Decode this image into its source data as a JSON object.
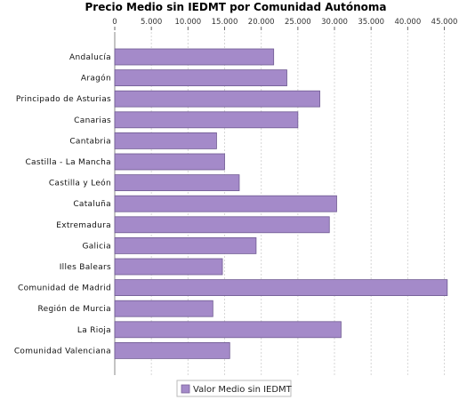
{
  "chart_data": {
    "type": "bar",
    "orientation": "horizontal",
    "title": "Precio Medio sin IEDMT por Comunidad Autónoma",
    "xlabel": "",
    "ylabel": "",
    "xlim": [
      0,
      47000
    ],
    "ticks": [
      0,
      5000,
      10000,
      15000,
      20000,
      25000,
      30000,
      35000,
      40000,
      45000
    ],
    "tick_labels": [
      "0",
      "5.000",
      "10.000",
      "15.000",
      "20.000",
      "25.000",
      "30.000",
      "35.000",
      "40.000",
      "45.000"
    ],
    "axis_position": "top",
    "grid": true,
    "categories": [
      "Andalucía",
      "Aragón",
      "Principado de Asturias",
      "Canarias",
      "Cantabria",
      "Castilla - La Mancha",
      "Castilla y León",
      "Cataluña",
      "Extremadura",
      "Galicia",
      "Illes Balears",
      "Comunidad de Madrid",
      "Región de Murcia",
      "La Rioja",
      "Comunidad Valenciana"
    ],
    "series": [
      {
        "name": "Valor Medio sin IEDMT",
        "color": "#a48ac9",
        "values": [
          21700,
          23500,
          28000,
          25000,
          13900,
          15000,
          17000,
          30300,
          29300,
          19300,
          14700,
          45400,
          13400,
          30900,
          15700
        ]
      }
    ],
    "legend_position": "bottom-center"
  }
}
